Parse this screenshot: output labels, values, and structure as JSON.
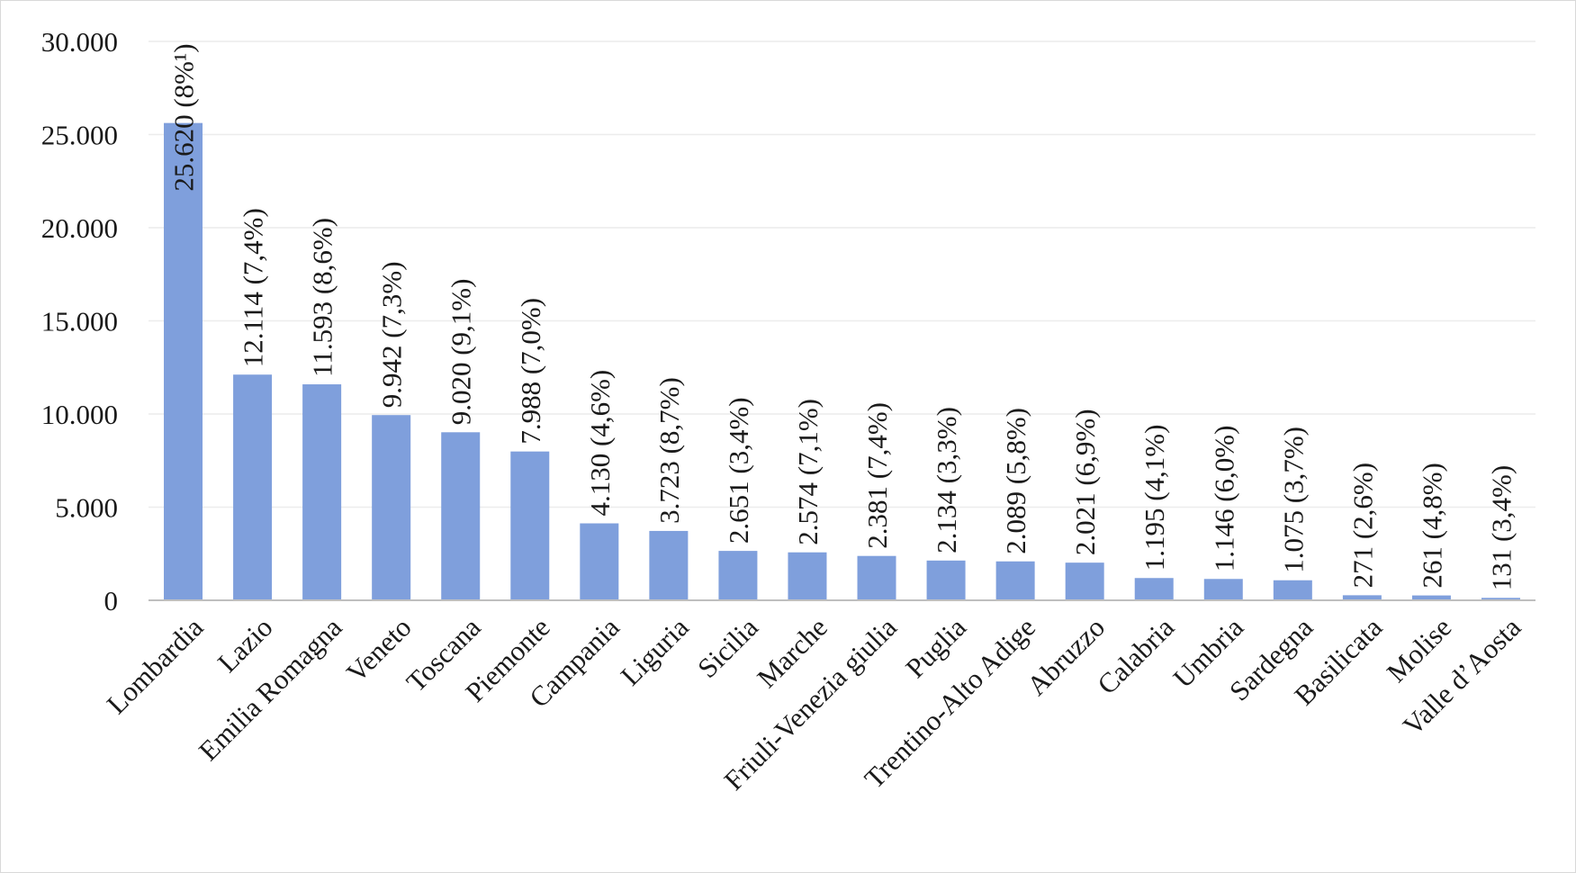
{
  "chart_data": {
    "type": "bar",
    "categories": [
      "Lombardia",
      "Lazio",
      "Emilia Romagna",
      "Veneto",
      "Toscana",
      "Piemonte",
      "Campania",
      "Liguria",
      "Sicilia",
      "Marche",
      "Friuli-Venezia giulia",
      "Puglia",
      "Trentino-Alto Adige",
      "Abruzzo",
      "Calabria",
      "Umbria",
      "Sardegna",
      "Basilicata",
      "Molise",
      "Valle d’Aosta"
    ],
    "values": [
      25620,
      12114,
      11593,
      9942,
      9020,
      7988,
      4130,
      3723,
      2651,
      2574,
      2381,
      2134,
      2089,
      2021,
      1195,
      1146,
      1075,
      271,
      261,
      131
    ],
    "data_labels": [
      "25.620 (8%¹)",
      "12.114 (7,4%)",
      "11.593 (8,6%)",
      "9.942 (7,3%)",
      "9.020 (9,1%)",
      "7.988 (7,0%)",
      "4.130 (4,6%)",
      "3.723 (8,7%)",
      "2.651 (3,4%)",
      "2.574 (7,1%)",
      "2.381 (7,4%)",
      "2.134 (3,3%)",
      "2.089 (5,8%)",
      "2.021 (6,9%)",
      "1.195 (4,1%)",
      "1.146 (6,0%)",
      "1.075 (3,7%)",
      "271 (2,6%)",
      "261 (4,8%)",
      "131 (3,4%)"
    ],
    "y_ticks": [
      0,
      5000,
      10000,
      15000,
      20000,
      25000,
      30000
    ],
    "y_tick_labels": [
      "0",
      "5.000",
      "10.000",
      "15.000",
      "20.000",
      "25.000",
      "30.000"
    ],
    "ylim": [
      0,
      30000
    ],
    "title": "",
    "xlabel": "",
    "ylabel": "",
    "grid": true,
    "legend": "none",
    "bar_color": "#7f9fdc"
  }
}
